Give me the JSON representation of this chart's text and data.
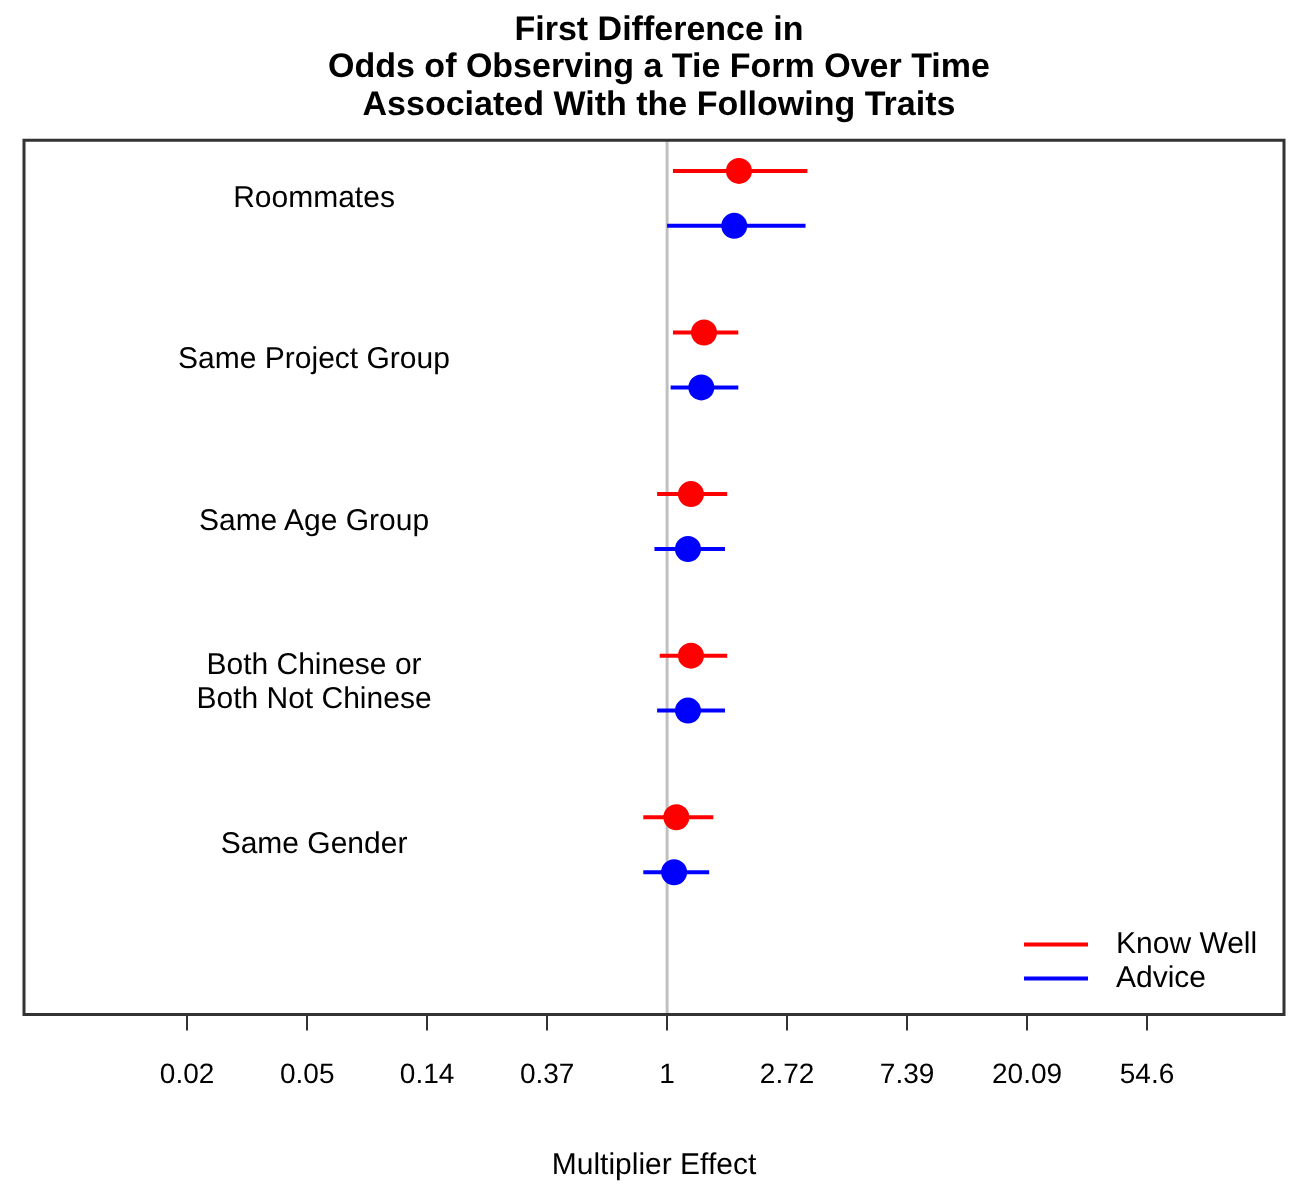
{
  "chart_data": {
    "type": "scatter",
    "orientation": "horizontal",
    "title": "First Difference in\nOdds of Observing a Tie Form Over Time\nAssociated With the Following Traits",
    "xlabel": "Multiplier Effect",
    "categories": [
      "Roommates",
      "Same Project Group",
      "Same Age Group",
      "Both Chinese or\nBoth Not Chinese",
      "Same Gender"
    ],
    "series": [
      {
        "name": "Know Well",
        "color": "#ff0000",
        "values": [
          1.82,
          1.36,
          1.22,
          1.22,
          1.08
        ],
        "errors": [
          [
            1.05,
            3.22
          ],
          [
            1.05,
            1.81
          ],
          [
            0.92,
            1.65
          ],
          [
            0.94,
            1.65
          ],
          [
            0.82,
            1.47
          ]
        ]
      },
      {
        "name": "Advice",
        "color": "#0000ff",
        "values": [
          1.75,
          1.33,
          1.19,
          1.19,
          1.06
        ],
        "errors": [
          [
            1.0,
            3.17
          ],
          [
            1.03,
            1.81
          ],
          [
            0.9,
            1.62
          ],
          [
            0.92,
            1.62
          ],
          [
            0.82,
            1.42
          ]
        ]
      }
    ],
    "log": "x",
    "xlim": [
      0.0047,
      171
    ],
    "xticks": [
      {
        "value": 0.0183,
        "label": "0.02"
      },
      {
        "value": 0.0498,
        "label": "0.05"
      },
      {
        "value": 0.1353,
        "label": "0.14"
      },
      {
        "value": 0.3679,
        "label": "0.37"
      },
      1,
      {
        "value": 2.718,
        "label": "2.72"
      },
      {
        "value": 7.389,
        "label": "7.39"
      },
      {
        "value": 20.09,
        "label": "20.09"
      },
      {
        "value": 54.6,
        "label": "54.6"
      }
    ],
    "ref_lines": [
      {
        "axis": "x",
        "value": 1,
        "color": "#c0c0c0"
      }
    ],
    "grid": false,
    "legend": "bottom right",
    "marker": "circle"
  }
}
